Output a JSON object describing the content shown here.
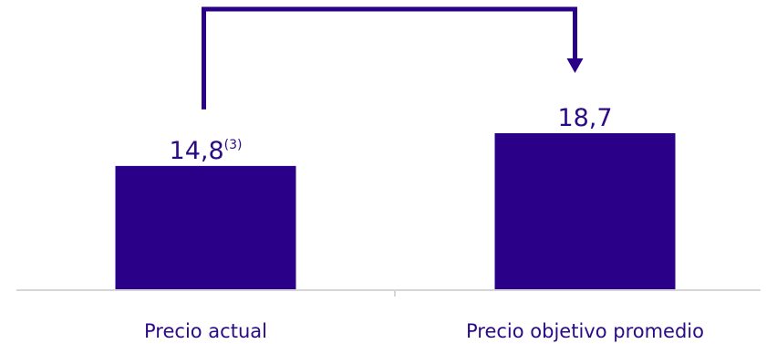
{
  "colors": {
    "bar": "#2a0088",
    "text": "#2a0a85",
    "axis": "#d6d6d6",
    "arrow": "#2a0088"
  },
  "chart_data": {
    "type": "bar",
    "categories": [
      "Precio actual",
      "Precio objetivo promedio"
    ],
    "values": [
      14.8,
      18.7
    ],
    "value_labels": [
      "14,8",
      "18,7"
    ],
    "value_footnotes": [
      "(3)",
      ""
    ],
    "title": "",
    "xlabel": "",
    "ylabel": "",
    "ylim": [
      0,
      18.7
    ],
    "grid": false,
    "legend": "none",
    "annotation": "arrow-from-first-to-second-bar"
  }
}
